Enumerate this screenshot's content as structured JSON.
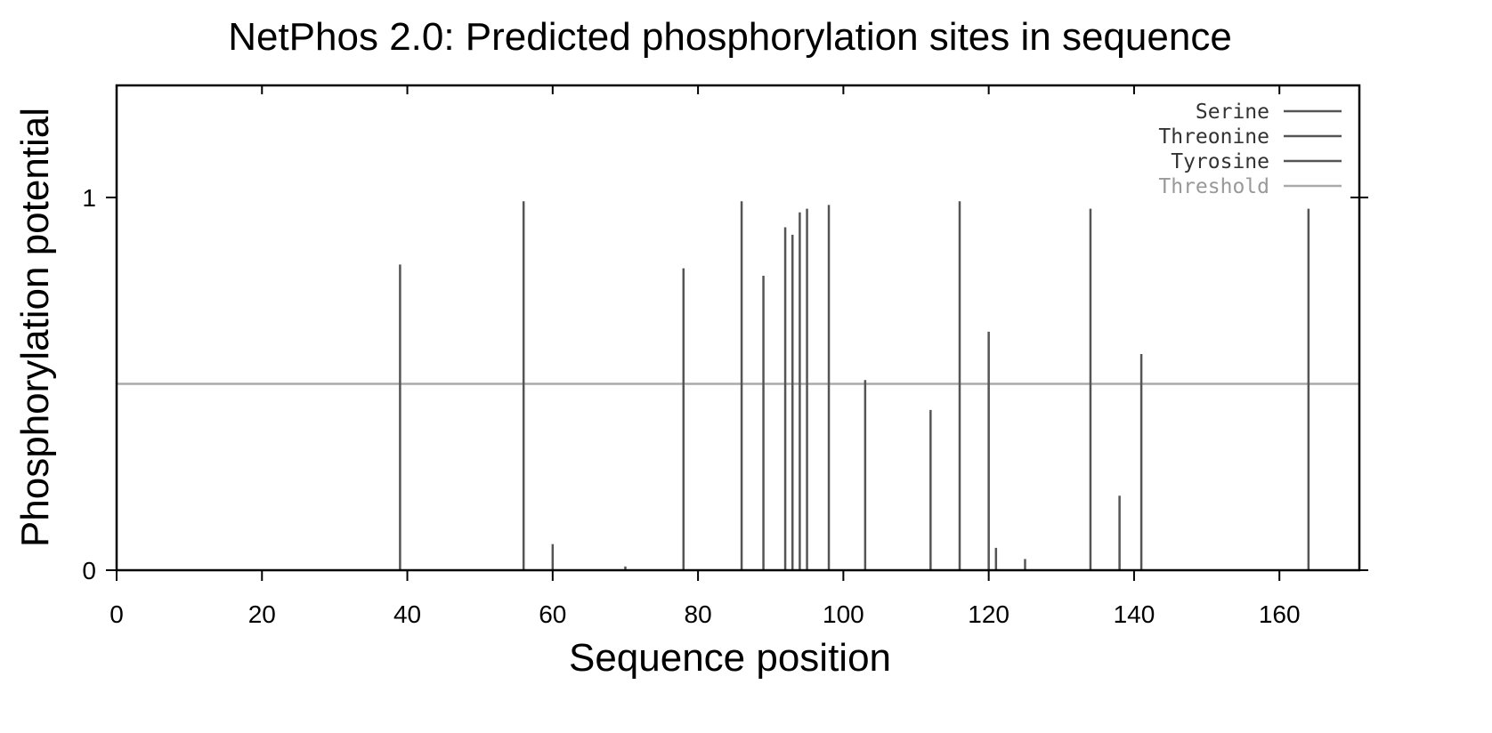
{
  "chart_data": {
    "type": "bar",
    "title": "NetPhos 2.0: Predicted phosphorylation sites in sequence",
    "xlabel": "Sequence position",
    "ylabel": "Phosphorylation potential",
    "xlim": [
      0,
      171
    ],
    "ylim": [
      0,
      1.3
    ],
    "x_ticks": [
      "0",
      "20",
      "40",
      "60",
      "80",
      "100",
      "120",
      "140",
      "160"
    ],
    "y_ticks": [
      "0",
      "1"
    ],
    "threshold": 0.5,
    "legend_position": "top-right",
    "legend": [
      {
        "name": "Serine",
        "color": "#555555"
      },
      {
        "name": "Threonine",
        "color": "#555555"
      },
      {
        "name": "Tyrosine",
        "color": "#555555"
      },
      {
        "name": "Threshold",
        "color": "#aaaaaa"
      }
    ],
    "sites": [
      {
        "x": 39,
        "y": 0.82
      },
      {
        "x": 56,
        "y": 0.99
      },
      {
        "x": 60,
        "y": 0.07
      },
      {
        "x": 70,
        "y": 0.01
      },
      {
        "x": 78,
        "y": 0.81
      },
      {
        "x": 86,
        "y": 0.99
      },
      {
        "x": 89,
        "y": 0.79
      },
      {
        "x": 92,
        "y": 0.92
      },
      {
        "x": 93,
        "y": 0.9
      },
      {
        "x": 94,
        "y": 0.96
      },
      {
        "x": 95,
        "y": 0.97
      },
      {
        "x": 98,
        "y": 0.98
      },
      {
        "x": 103,
        "y": 0.51
      },
      {
        "x": 112,
        "y": 0.43
      },
      {
        "x": 116,
        "y": 0.99
      },
      {
        "x": 120,
        "y": 0.64
      },
      {
        "x": 121,
        "y": 0.06
      },
      {
        "x": 125,
        "y": 0.03
      },
      {
        "x": 134,
        "y": 0.97
      },
      {
        "x": 138,
        "y": 0.2
      },
      {
        "x": 141,
        "y": 0.58
      },
      {
        "x": 164,
        "y": 0.97
      }
    ]
  }
}
